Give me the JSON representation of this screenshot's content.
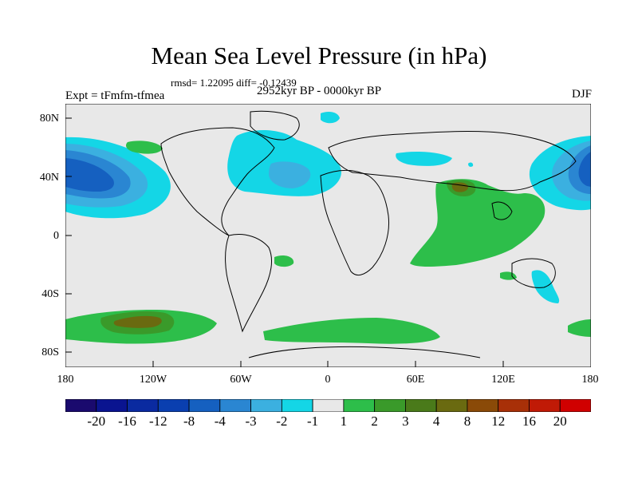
{
  "title": "Mean Sea Level Pressure (in hPa)",
  "stats": "rmsd= 1.22095 diff= -0.12439",
  "experiment": "Expt = tFmfm-tfmea",
  "period": "2952kyr BP - 0000kyr BP",
  "season": "DJF",
  "lat_labels": [
    "80N",
    "40N",
    "0",
    "40S",
    "80S"
  ],
  "lon_labels": [
    "180",
    "120W",
    "60W",
    "0",
    "60E",
    "120E",
    "180"
  ],
  "colorbar": {
    "labels": [
      "-20",
      "-16",
      "-12",
      "-8",
      "-4",
      "-3",
      "-2",
      "-1",
      "1",
      "2",
      "3",
      "4",
      "8",
      "12",
      "16",
      "20"
    ],
    "colors": [
      "#1a0a6e",
      "#0a1490",
      "#0a2aa0",
      "#0a3fb0",
      "#1560c0",
      "#2a86d2",
      "#3bb0e0",
      "#14d6e6",
      "#e8e8e8",
      "#2dbe4a",
      "#3a9a2a",
      "#4a7a1a",
      "#6a6a10",
      "#8a4a08",
      "#a83008",
      "#c01a06",
      "#d00000"
    ]
  },
  "colors": {
    "land_background": "#e8e8e8",
    "neg1": "#14d6e6",
    "neg2": "#3bb0e0",
    "neg3": "#2a86d2",
    "neg4": "#1560c0",
    "neg5": "#0a3fb0",
    "pos1": "#2dbe4a",
    "pos2": "#3a9a2a",
    "pos3": "#6a6a10"
  }
}
